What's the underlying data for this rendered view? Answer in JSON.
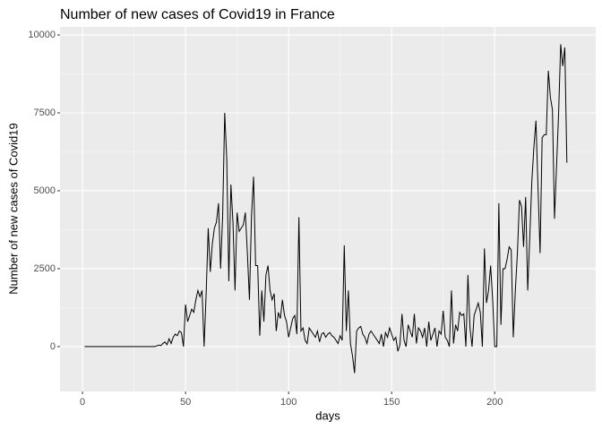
{
  "chart_data": {
    "type": "line",
    "title": "Number of new cases of Covid19 in France",
    "x_label": "days",
    "y_label": "Number of new cases of Covid19",
    "xlim": [
      -10.9,
      249
    ],
    "ylim": [
      -1440,
      10260
    ],
    "xticks": [
      0,
      50,
      100,
      150,
      200
    ],
    "yticks": [
      0,
      2500,
      5000,
      7500,
      10000
    ],
    "grid": true,
    "series": [
      {
        "color": "#000000",
        "x": [
          1,
          2,
          3,
          4,
          5,
          6,
          7,
          8,
          9,
          10,
          11,
          12,
          13,
          14,
          15,
          16,
          17,
          18,
          19,
          20,
          21,
          22,
          23,
          24,
          25,
          26,
          27,
          28,
          29,
          30,
          31,
          32,
          33,
          34,
          35,
          36,
          37,
          38,
          39,
          40,
          41,
          42,
          43,
          44,
          45,
          46,
          47,
          48,
          49,
          50,
          51,
          52,
          53,
          54,
          55,
          56,
          57,
          58,
          59,
          60,
          61,
          62,
          63,
          64,
          65,
          66,
          67,
          68,
          69,
          70,
          71,
          72,
          73,
          74,
          75,
          76,
          77,
          78,
          79,
          80,
          81,
          82,
          83,
          84,
          85,
          86,
          87,
          88,
          89,
          90,
          91,
          92,
          93,
          94,
          95,
          96,
          97,
          98,
          99,
          100,
          101,
          102,
          103,
          104,
          105,
          106,
          107,
          108,
          109,
          110,
          111,
          112,
          113,
          114,
          115,
          116,
          117,
          118,
          119,
          120,
          121,
          122,
          123,
          124,
          125,
          126,
          127,
          128,
          129,
          130,
          131,
          132,
          133,
          134,
          135,
          136,
          137,
          138,
          139,
          140,
          141,
          142,
          143,
          144,
          145,
          146,
          147,
          148,
          149,
          150,
          151,
          152,
          153,
          154,
          155,
          156,
          157,
          158,
          159,
          160,
          161,
          162,
          163,
          164,
          165,
          166,
          167,
          168,
          169,
          170,
          171,
          172,
          173,
          174,
          175,
          176,
          177,
          178,
          179,
          180,
          181,
          182,
          183,
          184,
          185,
          186,
          187,
          188,
          189,
          190,
          191,
          192,
          193,
          194,
          195,
          196,
          197,
          198,
          199,
          200,
          201,
          202,
          203,
          204,
          205,
          206,
          207,
          208,
          209,
          210,
          211,
          212,
          213,
          214,
          215,
          216,
          217,
          218,
          219,
          220,
          221,
          222,
          223,
          224,
          225,
          226,
          227,
          228,
          229,
          230,
          231,
          232,
          233,
          234,
          235
        ],
        "values": [
          0,
          0,
          0,
          0,
          0,
          0,
          0,
          0,
          0,
          0,
          0,
          0,
          0,
          0,
          0,
          0,
          0,
          0,
          0,
          0,
          0,
          0,
          0,
          0,
          0,
          0,
          0,
          0,
          0,
          0,
          0,
          0,
          0,
          0,
          0,
          20,
          50,
          30,
          100,
          150,
          60,
          250,
          100,
          300,
          400,
          350,
          500,
          450,
          0,
          1350,
          800,
          1000,
          1200,
          1100,
          1500,
          1800,
          1600,
          1800,
          0,
          1700,
          3800,
          2400,
          3300,
          3800,
          4000,
          4600,
          2500,
          4200,
          7500,
          6000,
          2100,
          5200,
          4000,
          1800,
          4300,
          3700,
          3800,
          3900,
          4300,
          3000,
          1500,
          4200,
          5450,
          2600,
          2600,
          350,
          1800,
          800,
          2300,
          2600,
          1800,
          1500,
          1700,
          500,
          1100,
          900,
          1500,
          1000,
          800,
          300,
          600,
          900,
          1000,
          400,
          4150,
          500,
          600,
          200,
          100,
          600,
          500,
          400,
          300,
          500,
          150,
          400,
          450,
          300,
          400,
          450,
          350,
          300,
          200,
          100,
          350,
          200,
          3250,
          500,
          1800,
          100,
          -300,
          -850,
          500,
          600,
          650,
          400,
          300,
          100,
          400,
          500,
          400,
          300,
          200,
          100,
          400,
          0,
          450,
          300,
          600,
          400,
          200,
          300,
          -150,
          50,
          1050,
          200,
          0,
          700,
          500,
          300,
          1050,
          100,
          600,
          500,
          300,
          600,
          0,
          800,
          200,
          400,
          600,
          0,
          500,
          400,
          1150,
          300,
          200,
          0,
          1800,
          100,
          700,
          500,
          1100,
          1000,
          1050,
          0,
          2300,
          600,
          0,
          1000,
          1200,
          1400,
          1100,
          0,
          3150,
          1400,
          1800,
          2600,
          1500,
          0,
          0,
          4600,
          700,
          2500,
          2500,
          2800,
          3200,
          3100,
          300,
          1800,
          3000,
          4700,
          4500,
          3200,
          4800,
          1800,
          3500,
          5300,
          6400,
          7250,
          5100,
          3000,
          6700,
          6800,
          6800,
          8850,
          8000,
          7600,
          4100,
          5800,
          7500,
          9700,
          9000,
          9600,
          5900
        ]
      }
    ]
  }
}
